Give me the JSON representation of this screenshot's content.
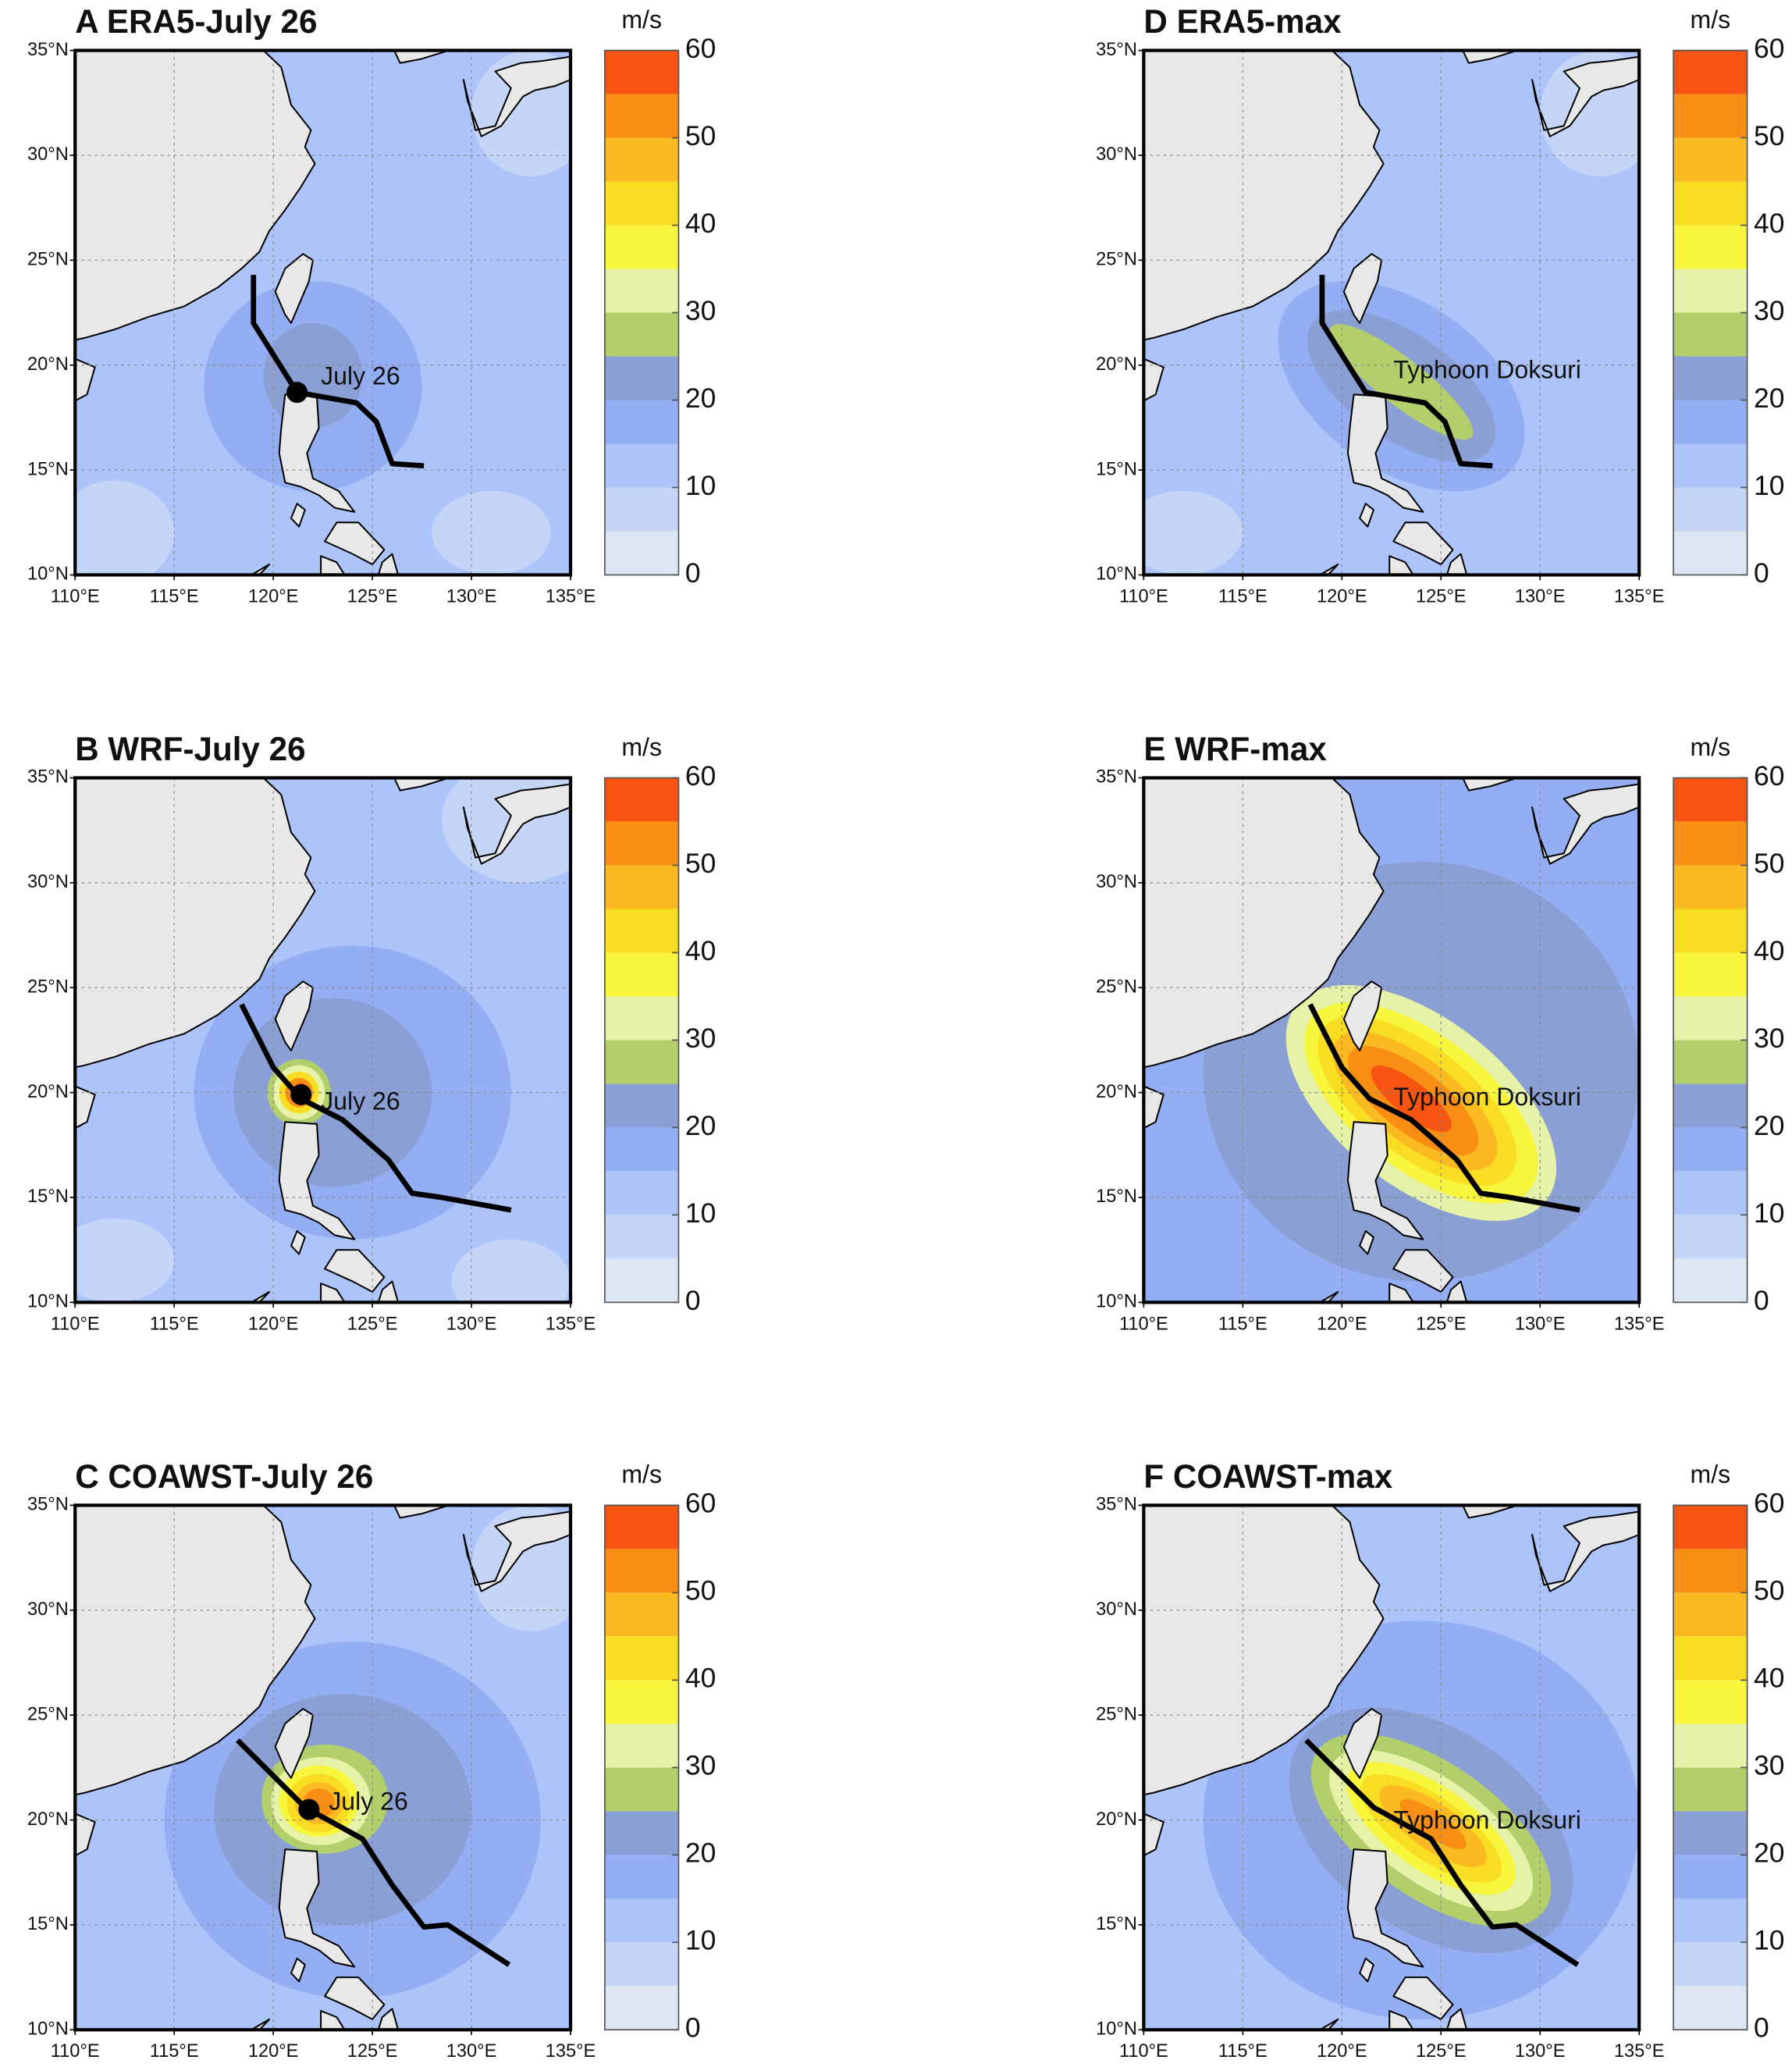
{
  "chart_data": [
    {
      "type": "contour-map",
      "title": "A ERA5-July 26",
      "annotation": "July 26",
      "colorbar_label": "m/s",
      "levels": [
        0,
        5,
        10,
        15,
        20,
        25,
        30,
        35,
        40,
        45,
        50,
        55,
        60
      ],
      "colors": [
        "#dde6f3",
        "#c5d5f8",
        "#adc4fa",
        "#94aef4",
        "#8a9fd4",
        "#b2cf6c",
        "#e6f2a8",
        "#f7f53c",
        "#f8dd22",
        "#fbba22",
        "#f98e15",
        "#f75511"
      ],
      "cticks": [
        0,
        10,
        20,
        30,
        40,
        50,
        60
      ],
      "xlim": [
        110,
        135
      ],
      "ylim": [
        10,
        35
      ],
      "xticks": [
        {
          "value": 110,
          "label": "110°E"
        },
        {
          "value": 115,
          "label": "115°E"
        },
        {
          "value": 120,
          "label": "120°E"
        },
        {
          "value": 125,
          "label": "125°E"
        },
        {
          "value": 130,
          "label": "130°E"
        },
        {
          "value": 135,
          "label": "135°E"
        }
      ],
      "yticks": [
        {
          "value": 10,
          "label": "10°N"
        },
        {
          "value": 15,
          "label": "15°N"
        },
        {
          "value": 20,
          "label": "20°N"
        },
        {
          "value": 25,
          "label": "25°N"
        },
        {
          "value": 30,
          "label": "30°N"
        },
        {
          "value": 35,
          "label": "35°N"
        }
      ],
      "grid": true,
      "track": {
        "lon": [
          119.0,
          119.0,
          121.2,
          124.2,
          125.2,
          126.0,
          127.6
        ],
        "lat": [
          24.3,
          22.0,
          18.7,
          18.2,
          17.3,
          15.3,
          15.2
        ]
      },
      "marker": {
        "lon": 121.2,
        "lat": 18.7
      }
    },
    {
      "type": "contour-map",
      "title": "B WRF-July 26",
      "annotation": "July 26",
      "colorbar_label": "m/s",
      "levels": [
        0,
        5,
        10,
        15,
        20,
        25,
        30,
        35,
        40,
        45,
        50,
        55,
        60
      ],
      "colors": [
        "#dde6f3",
        "#c5d5f8",
        "#adc4fa",
        "#94aef4",
        "#8a9fd4",
        "#b2cf6c",
        "#e6f2a8",
        "#f7f53c",
        "#f8dd22",
        "#fbba22",
        "#f98e15",
        "#f75511"
      ],
      "cticks": [
        0,
        10,
        20,
        30,
        40,
        50,
        60
      ],
      "xlim": [
        110,
        135
      ],
      "ylim": [
        10,
        35
      ],
      "xticks": [
        {
          "value": 110,
          "label": "110°E"
        },
        {
          "value": 115,
          "label": "115°E"
        },
        {
          "value": 120,
          "label": "120°E"
        },
        {
          "value": 125,
          "label": "125°E"
        },
        {
          "value": 130,
          "label": "130°E"
        },
        {
          "value": 135,
          "label": "135°E"
        }
      ],
      "yticks": [
        {
          "value": 10,
          "label": "10°N"
        },
        {
          "value": 15,
          "label": "15°N"
        },
        {
          "value": 20,
          "label": "20°N"
        },
        {
          "value": 25,
          "label": "25°N"
        },
        {
          "value": 30,
          "label": "30°N"
        },
        {
          "value": 35,
          "label": "35°N"
        }
      ],
      "grid": true,
      "track": {
        "lon": [
          118.4,
          120.0,
          121.4,
          123.5,
          125.8,
          127.0,
          128.5,
          132.0
        ],
        "lat": [
          24.2,
          21.2,
          19.7,
          18.7,
          16.8,
          15.2,
          15.0,
          14.4
        ]
      },
      "marker": {
        "lon": 121.4,
        "lat": 19.9
      }
    },
    {
      "type": "contour-map",
      "title": "C COAWST-July 26",
      "annotation": "July 26",
      "colorbar_label": "m/s",
      "levels": [
        0,
        5,
        10,
        15,
        20,
        25,
        30,
        35,
        40,
        45,
        50,
        55,
        60
      ],
      "colors": [
        "#dde6f3",
        "#c5d5f8",
        "#adc4fa",
        "#94aef4",
        "#8a9fd4",
        "#b2cf6c",
        "#e6f2a8",
        "#f7f53c",
        "#f8dd22",
        "#fbba22",
        "#f98e15",
        "#f75511"
      ],
      "cticks": [
        0,
        10,
        20,
        30,
        40,
        50,
        60
      ],
      "xlim": [
        110,
        135
      ],
      "ylim": [
        10,
        35
      ],
      "xticks": [
        {
          "value": 110,
          "label": "110°E"
        },
        {
          "value": 115,
          "label": "115°E"
        },
        {
          "value": 120,
          "label": "120°E"
        },
        {
          "value": 125,
          "label": "125°E"
        },
        {
          "value": 130,
          "label": "130°E"
        },
        {
          "value": 135,
          "label": "135°E"
        }
      ],
      "yticks": [
        {
          "value": 10,
          "label": "10°N"
        },
        {
          "value": 15,
          "label": "15°N"
        },
        {
          "value": 20,
          "label": "20°N"
        },
        {
          "value": 25,
          "label": "25°N"
        },
        {
          "value": 30,
          "label": "30°N"
        },
        {
          "value": 35,
          "label": "35°N"
        }
      ],
      "grid": true,
      "track": {
        "lon": [
          118.2,
          121.6,
          124.5,
          126.0,
          127.6,
          128.8,
          131.9
        ],
        "lat": [
          23.8,
          20.6,
          19.1,
          16.9,
          14.9,
          15.0,
          13.1
        ]
      },
      "marker": {
        "lon": 121.8,
        "lat": 20.5
      }
    },
    {
      "type": "contour-map",
      "title": "D ERA5-max",
      "annotation": "Typhoon Doksuri",
      "colorbar_label": "m/s",
      "levels": [
        0,
        5,
        10,
        15,
        20,
        25,
        30,
        35,
        40,
        45,
        50,
        55,
        60
      ],
      "colors": [
        "#dde6f3",
        "#c5d5f8",
        "#adc4fa",
        "#94aef4",
        "#8a9fd4",
        "#b2cf6c",
        "#e6f2a8",
        "#f7f53c",
        "#f8dd22",
        "#fbba22",
        "#f98e15",
        "#f75511"
      ],
      "cticks": [
        0,
        10,
        20,
        30,
        40,
        50,
        60
      ],
      "xlim": [
        110,
        135
      ],
      "ylim": [
        10,
        35
      ],
      "xticks": [
        {
          "value": 110,
          "label": "110°E"
        },
        {
          "value": 115,
          "label": "115°E"
        },
        {
          "value": 120,
          "label": "120°E"
        },
        {
          "value": 125,
          "label": "125°E"
        },
        {
          "value": 130,
          "label": "130°E"
        },
        {
          "value": 135,
          "label": "135°E"
        }
      ],
      "yticks": [
        {
          "value": 10,
          "label": "10°N"
        },
        {
          "value": 15,
          "label": "15°N"
        },
        {
          "value": 20,
          "label": "20°N"
        },
        {
          "value": 25,
          "label": "25°N"
        },
        {
          "value": 30,
          "label": "30°N"
        },
        {
          "value": 35,
          "label": "35°N"
        }
      ],
      "grid": true,
      "track": {
        "lon": [
          119.0,
          119.0,
          121.2,
          124.2,
          125.2,
          126.0,
          127.6
        ],
        "lat": [
          24.3,
          22.0,
          18.7,
          18.2,
          17.3,
          15.3,
          15.2
        ]
      }
    },
    {
      "type": "contour-map",
      "title": "E WRF-max",
      "annotation": "Typhoon Doksuri",
      "colorbar_label": "m/s",
      "levels": [
        0,
        5,
        10,
        15,
        20,
        25,
        30,
        35,
        40,
        45,
        50,
        55,
        60
      ],
      "colors": [
        "#dde6f3",
        "#c5d5f8",
        "#adc4fa",
        "#94aef4",
        "#8a9fd4",
        "#b2cf6c",
        "#e6f2a8",
        "#f7f53c",
        "#f8dd22",
        "#fbba22",
        "#f98e15",
        "#f75511"
      ],
      "cticks": [
        0,
        10,
        20,
        30,
        40,
        50,
        60
      ],
      "xlim": [
        110,
        135
      ],
      "ylim": [
        10,
        35
      ],
      "xticks": [
        {
          "value": 110,
          "label": "110°E"
        },
        {
          "value": 115,
          "label": "115°E"
        },
        {
          "value": 120,
          "label": "120°E"
        },
        {
          "value": 125,
          "label": "125°E"
        },
        {
          "value": 130,
          "label": "130°E"
        },
        {
          "value": 135,
          "label": "135°E"
        }
      ],
      "yticks": [
        {
          "value": 10,
          "label": "10°N"
        },
        {
          "value": 15,
          "label": "15°N"
        },
        {
          "value": 20,
          "label": "20°N"
        },
        {
          "value": 25,
          "label": "25°N"
        },
        {
          "value": 30,
          "label": "30°N"
        },
        {
          "value": 35,
          "label": "35°N"
        }
      ],
      "grid": true,
      "track": {
        "lon": [
          118.4,
          120.0,
          121.4,
          123.5,
          125.8,
          127.0,
          128.5,
          132.0
        ],
        "lat": [
          24.2,
          21.2,
          19.7,
          18.7,
          16.8,
          15.2,
          15.0,
          14.4
        ]
      }
    },
    {
      "type": "contour-map",
      "title": "F COAWST-max",
      "annotation": "Typhoon Doksuri",
      "colorbar_label": "m/s",
      "levels": [
        0,
        5,
        10,
        15,
        20,
        25,
        30,
        35,
        40,
        45,
        50,
        55,
        60
      ],
      "colors": [
        "#dde6f3",
        "#c5d5f8",
        "#adc4fa",
        "#94aef4",
        "#8a9fd4",
        "#b2cf6c",
        "#e6f2a8",
        "#f7f53c",
        "#f8dd22",
        "#fbba22",
        "#f98e15",
        "#f75511"
      ],
      "cticks": [
        0,
        10,
        20,
        30,
        40,
        50,
        60
      ],
      "xlim": [
        110,
        135
      ],
      "ylim": [
        10,
        35
      ],
      "xticks": [
        {
          "value": 110,
          "label": "110°E"
        },
        {
          "value": 115,
          "label": "115°E"
        },
        {
          "value": 120,
          "label": "120°E"
        },
        {
          "value": 125,
          "label": "125°E"
        },
        {
          "value": 130,
          "label": "130°E"
        },
        {
          "value": 135,
          "label": "135°E"
        }
      ],
      "yticks": [
        {
          "value": 10,
          "label": "10°N"
        },
        {
          "value": 15,
          "label": "15°N"
        },
        {
          "value": 20,
          "label": "20°N"
        },
        {
          "value": 25,
          "label": "25°N"
        },
        {
          "value": 30,
          "label": "30°N"
        },
        {
          "value": 35,
          "label": "35°N"
        }
      ],
      "grid": true,
      "track": {
        "lon": [
          118.2,
          121.6,
          124.5,
          126.0,
          127.6,
          128.8,
          131.9
        ],
        "lat": [
          23.8,
          20.6,
          19.1,
          16.9,
          14.9,
          15.0,
          13.1
        ]
      }
    }
  ]
}
